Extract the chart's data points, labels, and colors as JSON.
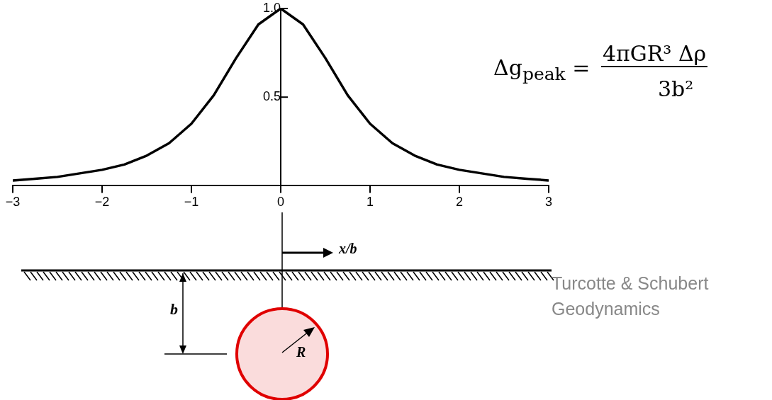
{
  "chart_data": {
    "type": "line",
    "xlabel": "x/b",
    "x": [
      -3,
      -2.75,
      -2.5,
      -2.25,
      -2,
      -1.75,
      -1.5,
      -1.25,
      -1,
      -0.75,
      -0.5,
      -0.25,
      0,
      0.25,
      0.5,
      0.75,
      1,
      1.25,
      1.5,
      1.75,
      2,
      2.25,
      2.5,
      2.75,
      3
    ],
    "series": [
      {
        "color": "#000000",
        "values": [
          0.03,
          0.04,
          0.05,
          0.07,
          0.09,
          0.12,
          0.17,
          0.24,
          0.35,
          0.51,
          0.72,
          0.91,
          1.0,
          0.91,
          0.72,
          0.51,
          0.35,
          0.24,
          0.17,
          0.12,
          0.09,
          0.07,
          0.05,
          0.04,
          0.03
        ]
      }
    ],
    "xlim": [
      -3,
      3
    ],
    "xticks": [
      {
        "value": -3,
        "label": "−3"
      },
      {
        "value": -2,
        "label": "−2"
      },
      {
        "value": -1,
        "label": "−1"
      },
      0,
      1,
      2,
      3
    ],
    "ylim": [
      0,
      1
    ],
    "yticks": [
      {
        "value": 0.5,
        "label": "0.5"
      },
      {
        "value": 1,
        "label": "1.0"
      }
    ],
    "grid": false,
    "legend": false,
    "marker": "none",
    "line_style": "solid",
    "annotations": [
      "Δg$_{peak}$ =",
      "4πGR³ Δρ",
      "3b²",
      "Turcotte & Schubert\nGeodynamics",
      "b",
      "R"
    ]
  }
}
